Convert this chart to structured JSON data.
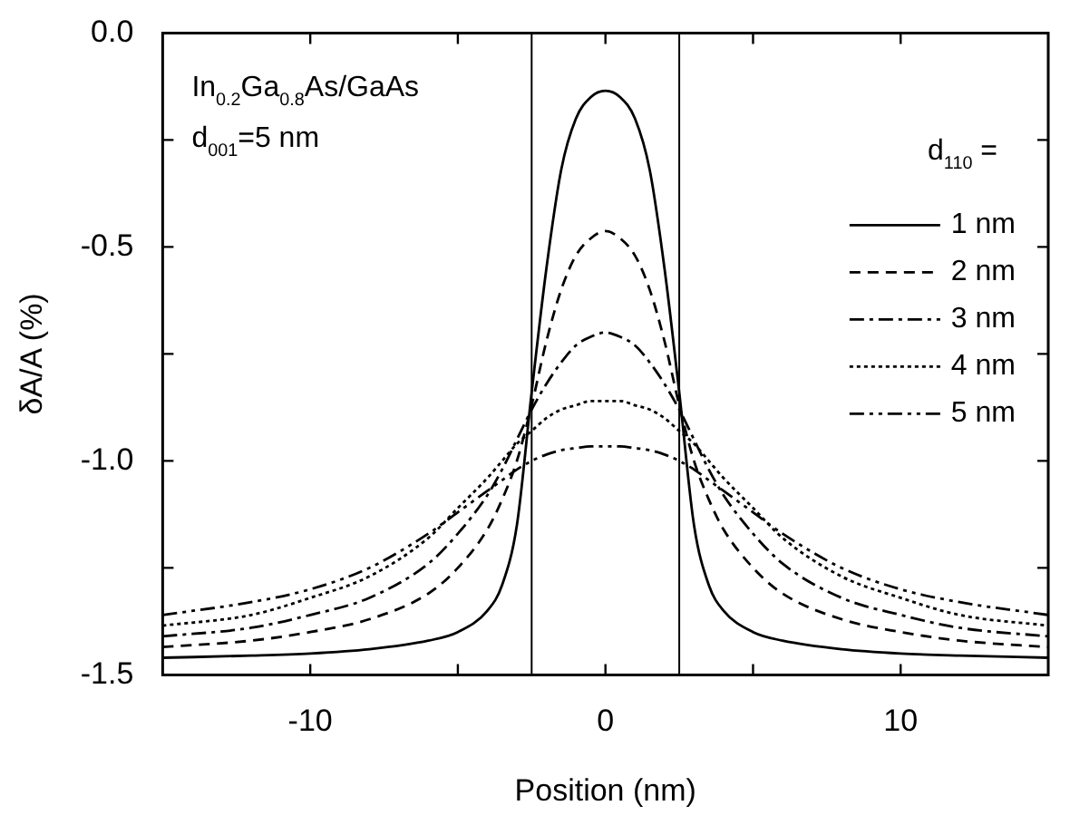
{
  "chart_data": {
    "type": "line",
    "xlabel": "Position (nm)",
    "ylabel": "δA/A (%)",
    "legend_title": "d$_{110}$ =",
    "annotations": [
      "In$_{0.2}$Ga$_{0.8}$As/GaAs",
      "d$_{001}$=5 nm"
    ],
    "x": [
      -15,
      -12,
      -10,
      -8,
      -6,
      -5,
      -4,
      -3.5,
      -3,
      -2.5,
      -2,
      -1.5,
      -1,
      -0.5,
      0,
      0.5,
      1,
      1.5,
      2,
      2.5,
      3,
      3.5,
      4,
      5,
      6,
      8,
      10,
      12,
      15
    ],
    "series": [
      {
        "name": "1 nm",
        "color": "#000000",
        "line_style": "solid",
        "values": [
          -1.46,
          -1.455,
          -1.45,
          -1.44,
          -1.42,
          -1.4,
          -1.35,
          -1.29,
          -1.15,
          -0.84,
          -0.55,
          -0.32,
          -0.2,
          -0.15,
          -0.135,
          -0.15,
          -0.2,
          -0.32,
          -0.55,
          -0.84,
          -1.15,
          -1.29,
          -1.35,
          -1.4,
          -1.42,
          -1.44,
          -1.45,
          -1.455,
          -1.46
        ]
      },
      {
        "name": "2 nm",
        "color": "#000000",
        "line_style": "dashed",
        "values": [
          -1.435,
          -1.42,
          -1.4,
          -1.37,
          -1.31,
          -1.25,
          -1.16,
          -1.09,
          -1,
          -0.87,
          -0.72,
          -0.6,
          -0.52,
          -0.48,
          -0.463,
          -0.48,
          -0.52,
          -0.6,
          -0.72,
          -0.87,
          -1,
          -1.09,
          -1.16,
          -1.25,
          -1.31,
          -1.37,
          -1.4,
          -1.42,
          -1.435
        ]
      },
      {
        "name": "3 nm",
        "color": "#000000",
        "line_style": "dashdot",
        "values": [
          -1.41,
          -1.39,
          -1.36,
          -1.32,
          -1.24,
          -1.17,
          -1.08,
          -1.02,
          -0.95,
          -0.88,
          -0.82,
          -0.77,
          -0.73,
          -0.71,
          -0.7,
          -0.71,
          -0.73,
          -0.77,
          -0.82,
          -0.88,
          -0.95,
          -1.02,
          -1.08,
          -1.17,
          -1.24,
          -1.32,
          -1.36,
          -1.39,
          -1.41
        ]
      },
      {
        "name": "4 nm",
        "color": "#000000",
        "line_style": "dotted",
        "values": [
          -1.385,
          -1.36,
          -1.32,
          -1.27,
          -1.18,
          -1.11,
          -1.04,
          -1,
          -0.96,
          -0.93,
          -0.9,
          -0.88,
          -0.87,
          -0.86,
          -0.86,
          -0.86,
          -0.87,
          -0.88,
          -0.9,
          -0.93,
          -0.96,
          -1,
          -1.04,
          -1.11,
          -1.18,
          -1.27,
          -1.32,
          -1.36,
          -1.385
        ]
      },
      {
        "name": "5 nm",
        "color": "#000000",
        "line_style": "dashdotdot",
        "values": [
          -1.36,
          -1.33,
          -1.3,
          -1.25,
          -1.17,
          -1.12,
          -1.07,
          -1.045,
          -1.02,
          -1,
          -0.985,
          -0.975,
          -0.97,
          -0.966,
          -0.966,
          -0.966,
          -0.97,
          -0.975,
          -0.985,
          -1,
          -1.02,
          -1.045,
          -1.07,
          -1.12,
          -1.17,
          -1.25,
          -1.3,
          -1.33,
          -1.36
        ]
      }
    ],
    "ref_lines": [
      {
        "axis": "x",
        "value": -2.5,
        "color": "#000000"
      },
      {
        "axis": "x",
        "value": 2.5,
        "color": "#000000"
      }
    ],
    "xlim": [
      -15,
      15
    ],
    "xticks": [
      -10,
      {
        "value": -5,
        "label": null
      },
      0,
      {
        "value": 5,
        "label": null
      },
      10
    ],
    "ylim": [
      -1.5,
      0
    ],
    "yticks": [
      {
        "value": -1.5,
        "label": "-1.5"
      },
      {
        "value": -1.25,
        "label": null
      },
      {
        "value": -1,
        "label": "-1.0"
      },
      {
        "value": -0.75,
        "label": null
      },
      {
        "value": -0.5,
        "label": "-0.5"
      },
      {
        "value": -0.25,
        "label": null
      },
      {
        "value": 0,
        "label": "0.0"
      }
    ],
    "grid": false,
    "legend": "top right",
    "marker": "none"
  }
}
